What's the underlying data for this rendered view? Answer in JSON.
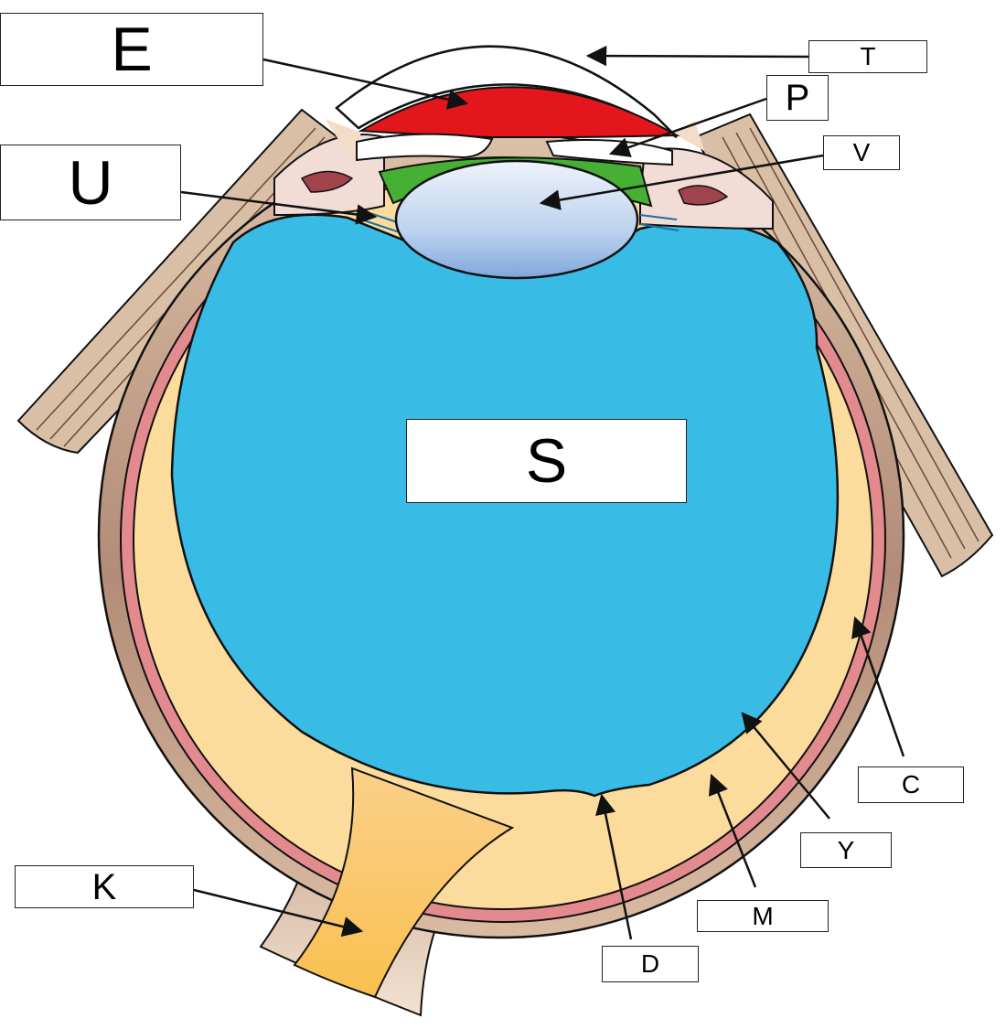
{
  "labels": {
    "E": "E",
    "T": "T",
    "P": "P",
    "V": "V",
    "U": "U",
    "S": "S",
    "C": "C",
    "Y": "Y",
    "M": "M",
    "D": "D",
    "K": "K"
  },
  "colors": {
    "sclera": "#b28c78",
    "choroid": "#e38a8f",
    "retina": "#fbdc9c",
    "vitreous": "#38bce6",
    "aqueous_humor": "#e3161c",
    "posterior_chamber": "#46b034",
    "lens": "#a9c6e8",
    "optic_nerve": "#fbc455",
    "cornea": "#ffffff",
    "outline": "#111111"
  }
}
